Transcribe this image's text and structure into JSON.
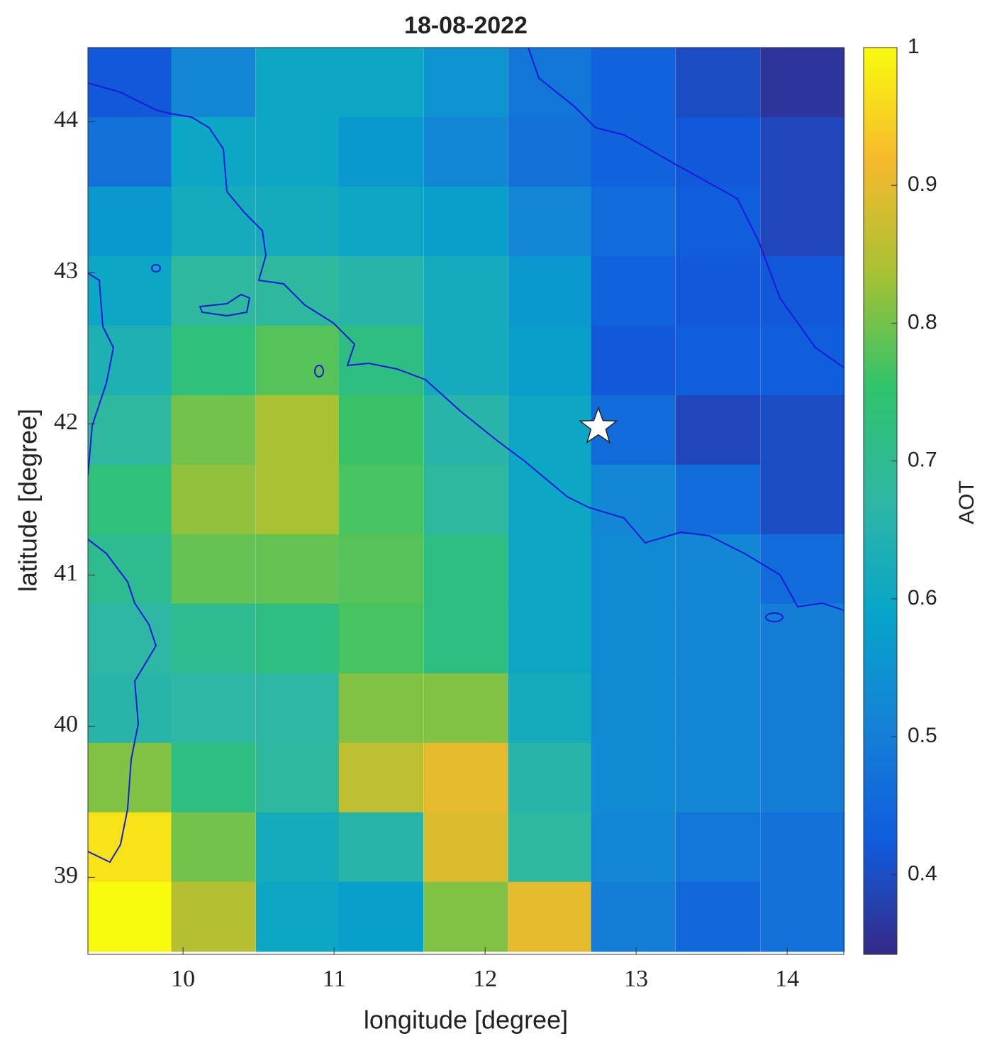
{
  "chart_data": {
    "type": "heatmap",
    "title": "18-08-2022",
    "x_label": "longitude [degree]",
    "y_label": "latitude [degree]",
    "colorbar_label": "AOT",
    "x": [
      9.65,
      10.2,
      10.76,
      11.31,
      11.87,
      12.43,
      12.98,
      13.54,
      14.1
    ],
    "y": [
      44.26,
      43.8,
      43.34,
      42.88,
      42.42,
      41.96,
      41.5,
      41.04,
      40.58,
      40.12,
      39.66,
      39.2,
      38.74
    ],
    "values": [
      [
        0.42,
        0.52,
        0.6,
        0.6,
        0.55,
        0.48,
        0.44,
        0.4,
        0.36
      ],
      [
        0.47,
        0.6,
        0.6,
        0.56,
        0.52,
        0.47,
        0.44,
        0.42,
        0.39
      ],
      [
        0.56,
        0.62,
        0.62,
        0.6,
        0.58,
        0.52,
        0.46,
        0.43,
        0.39
      ],
      [
        0.6,
        0.68,
        0.68,
        0.66,
        0.62,
        0.56,
        0.44,
        0.42,
        0.42
      ],
      [
        0.64,
        0.73,
        0.78,
        0.72,
        0.62,
        0.58,
        0.42,
        0.43,
        0.43
      ],
      [
        0.68,
        0.8,
        0.84,
        0.76,
        0.66,
        0.6,
        0.46,
        0.39,
        0.4
      ],
      [
        0.73,
        0.82,
        0.84,
        0.77,
        0.68,
        0.6,
        0.52,
        0.46,
        0.4
      ],
      [
        0.7,
        0.79,
        0.79,
        0.78,
        0.72,
        0.6,
        0.53,
        0.52,
        0.46
      ],
      [
        0.67,
        0.7,
        0.72,
        0.77,
        0.72,
        0.6,
        0.53,
        0.52,
        0.5
      ],
      [
        0.66,
        0.67,
        0.67,
        0.81,
        0.81,
        0.62,
        0.53,
        0.52,
        0.5
      ],
      [
        0.81,
        0.72,
        0.68,
        0.86,
        0.9,
        0.66,
        0.53,
        0.52,
        0.5
      ],
      [
        0.97,
        0.8,
        0.62,
        0.66,
        0.89,
        0.68,
        0.52,
        0.48,
        0.47
      ],
      [
        1.0,
        0.85,
        0.6,
        0.58,
        0.81,
        0.9,
        0.5,
        0.45,
        0.47
      ]
    ],
    "xlim": [
      9.37,
      14.375
    ],
    "ylim": [
      38.49,
      44.49
    ],
    "xticks": [
      10,
      11,
      12,
      13,
      14
    ],
    "yticks": [
      39,
      40,
      41,
      42,
      43,
      44
    ],
    "zlim": [
      0.342,
      1
    ],
    "zticks": [
      0.4,
      0.5,
      0.6,
      0.7,
      0.8,
      0.9,
      1
    ],
    "colormap": [
      "#352a87",
      "#0f5cdd",
      "#1481d6",
      "#06a4ca",
      "#2eb7a4",
      "#2fc36b",
      "#a6c232",
      "#f6b92c",
      "#f9fb0e"
    ],
    "marker": {
      "x": 12.75,
      "y": 41.98
    }
  }
}
